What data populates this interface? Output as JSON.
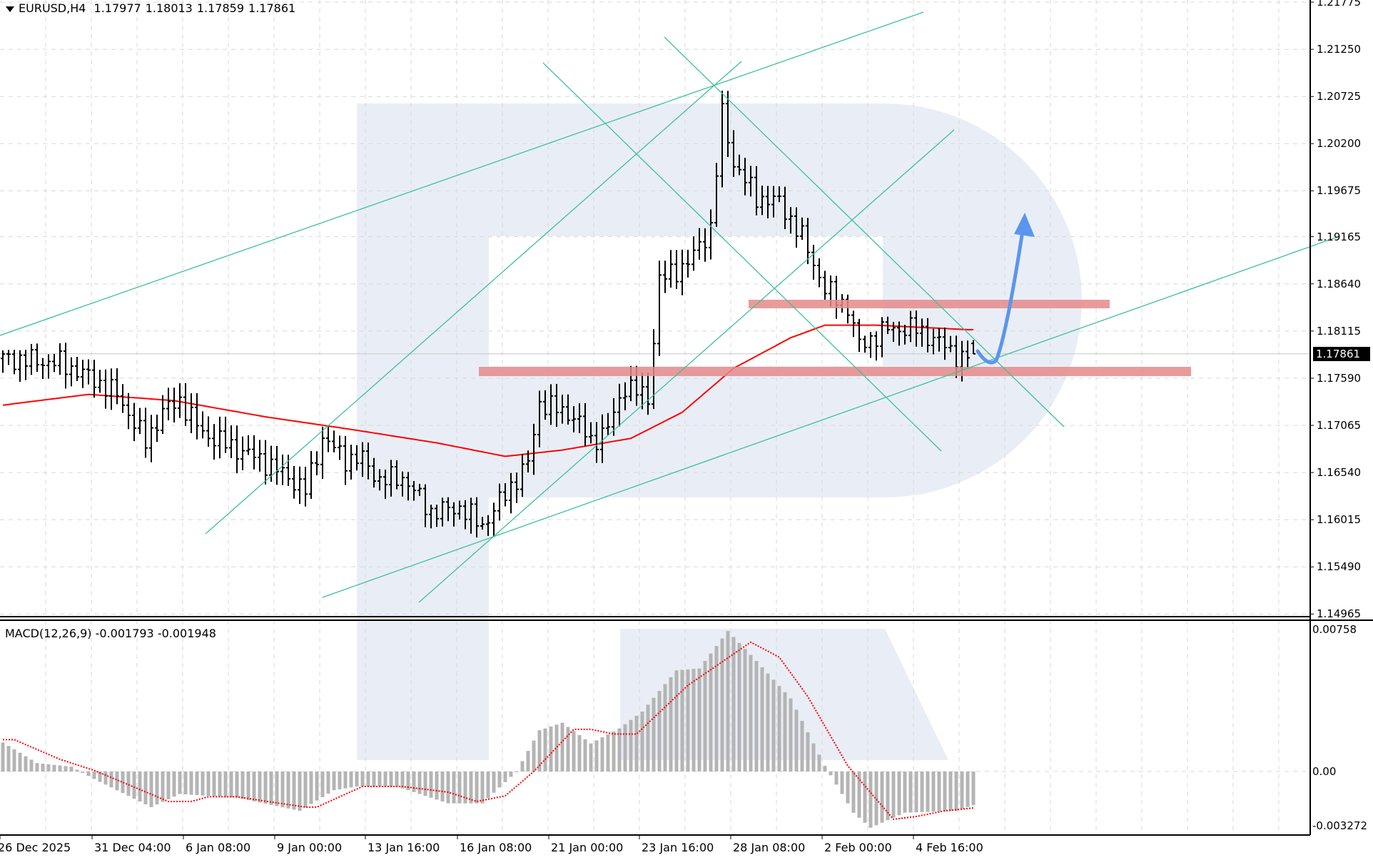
{
  "header": {
    "symbol": "EURUSD,H4",
    "open": "1.17977",
    "high": "1.18013",
    "low": "1.17859",
    "close": "1.17861"
  },
  "macd_label": {
    "name": "MACD(12,26,9)",
    "main": "-0.001793",
    "signal": "-0.001948"
  },
  "colors": {
    "bars": "#000000",
    "moving_average": "#ff0000",
    "trendlines": "#3dbf9f",
    "zones": "#e58a8a",
    "forecast_arrow": "#5b95ee",
    "histogram": "#b4b4b4",
    "signal": "#ff0000",
    "watermark": "#e8edf5"
  },
  "chart_data": [
    {
      "type": "bar",
      "subtype": "ohlc",
      "symbol": "EURUSD",
      "timeframe": "H4",
      "y_ticks": [
        "1.21775",
        "1.21250",
        "1.20725",
        "1.20200",
        "1.19675",
        "1.19165",
        "1.18640",
        "1.18115",
        "1.17590",
        "1.17065",
        "1.16540",
        "1.16015",
        "1.15490",
        "1.14965"
      ],
      "ylim": [
        1.14965,
        1.21775
      ],
      "current_price": "1.17861",
      "x_ticks": [
        "26 Dec 2025",
        "31 Dec 04:00",
        "6 Jan 08:00",
        "9 Jan 00:00",
        "13 Jan 16:00",
        "16 Jan 08:00",
        "21 Jan 00:00",
        "23 Jan 16:00",
        "28 Jan 08:00",
        "2 Feb 00:00",
        "4 Feb 16:00"
      ],
      "bar_count": 171,
      "close_keypoints": [
        [
          0,
          1.1781
        ],
        [
          10,
          1.1776
        ],
        [
          15,
          1.1761
        ],
        [
          20,
          1.1741
        ],
        [
          25,
          1.1688
        ],
        [
          28,
          1.1722
        ],
        [
          31,
          1.1734
        ],
        [
          35,
          1.1698
        ],
        [
          40,
          1.1683
        ],
        [
          45,
          1.1669
        ],
        [
          50,
          1.1649
        ],
        [
          53,
          1.1634
        ],
        [
          56,
          1.1693
        ],
        [
          60,
          1.1669
        ],
        [
          63,
          1.1669
        ],
        [
          66,
          1.1645
        ],
        [
          70,
          1.1649
        ],
        [
          75,
          1.161
        ],
        [
          80,
          1.1615
        ],
        [
          84,
          1.1595
        ],
        [
          88,
          1.163
        ],
        [
          92,
          1.1664
        ],
        [
          94,
          1.1732
        ],
        [
          100,
          1.1717
        ],
        [
          103,
          1.1688
        ],
        [
          106,
          1.1703
        ],
        [
          109,
          1.1751
        ],
        [
          113,
          1.1737
        ],
        [
          115,
          1.1868
        ],
        [
          120,
          1.1887
        ],
        [
          124,
          1.1926
        ],
        [
          126,
          1.2053
        ],
        [
          128,
          1.1999
        ],
        [
          132,
          1.196
        ],
        [
          136,
          1.1955
        ],
        [
          140,
          1.1916
        ],
        [
          144,
          1.1858
        ],
        [
          148,
          1.1838
        ],
        [
          150,
          1.1795
        ],
        [
          155,
          1.1814
        ],
        [
          160,
          1.1814
        ],
        [
          165,
          1.1795
        ],
        [
          168,
          1.178
        ],
        [
          170,
          1.17861
        ]
      ],
      "last_bar": {
        "open": 1.17977,
        "high": 1.18013,
        "low": 1.17859,
        "close": 1.17861
      },
      "moving_average_keypoints": [
        [
          0,
          1.1729
        ],
        [
          15,
          1.1741
        ],
        [
          30,
          1.1734
        ],
        [
          46,
          1.1716
        ],
        [
          61,
          1.1702
        ],
        [
          76,
          1.1687
        ],
        [
          88,
          1.1672
        ],
        [
          98,
          1.1679
        ],
        [
          110,
          1.1692
        ],
        [
          119,
          1.1721
        ],
        [
          128,
          1.177
        ],
        [
          138,
          1.1804
        ],
        [
          144,
          1.1818
        ],
        [
          153,
          1.1818
        ],
        [
          169,
          1.1813
        ]
      ],
      "trendlines": 6,
      "support_resistance_zones": [
        [
          1.185,
          1.186
        ],
        [
          1.1764,
          1.1775
        ]
      ],
      "forecast": "up"
    },
    {
      "type": "bar",
      "title": "MACD(12,26,9)",
      "y_ticks": [
        "0.00758",
        "0.00",
        "-0.003272"
      ],
      "ylim": [
        -0.003272,
        0.00758
      ],
      "histogram_keypoints": [
        [
          0,
          0.00155
        ],
        [
          6,
          0.00045
        ],
        [
          12,
          0.00026
        ],
        [
          16,
          -0.0004
        ],
        [
          26,
          -0.0019
        ],
        [
          31,
          -0.0012
        ],
        [
          41,
          -0.0014
        ],
        [
          52,
          -0.0021
        ],
        [
          58,
          -0.001
        ],
        [
          62,
          -0.0008
        ],
        [
          69,
          -0.0008
        ],
        [
          78,
          -0.0017
        ],
        [
          84,
          -0.0017
        ],
        [
          90,
          0
        ],
        [
          94,
          0.0022
        ],
        [
          98,
          0.0026
        ],
        [
          103,
          0.0015
        ],
        [
          108,
          0.0023
        ],
        [
          112,
          0.0032
        ],
        [
          118,
          0.0054
        ],
        [
          122,
          0.0055
        ],
        [
          127,
          0.0075
        ],
        [
          132,
          0.0059
        ],
        [
          138,
          0.0039
        ],
        [
          142,
          0.0015
        ],
        [
          144,
          0.0003
        ],
        [
          149,
          -0.0022
        ],
        [
          152,
          -0.003
        ],
        [
          158,
          -0.0022
        ],
        [
          167,
          -0.0021
        ],
        [
          170,
          -0.001793
        ]
      ],
      "signal_keypoints": [
        [
          0,
          0.0017
        ],
        [
          2,
          0.0017
        ],
        [
          10,
          0.00065
        ],
        [
          16,
          6e-05
        ],
        [
          29,
          -0.0016
        ],
        [
          33,
          -0.0016
        ],
        [
          36,
          -0.00135
        ],
        [
          41,
          -0.00135
        ],
        [
          53,
          -0.0019
        ],
        [
          55,
          -0.0019
        ],
        [
          63,
          -0.0008
        ],
        [
          70,
          -0.0008
        ],
        [
          78,
          -0.0011
        ],
        [
          83,
          -0.0016
        ],
        [
          88,
          -0.0013
        ],
        [
          93,
          0
        ],
        [
          100,
          0.00225
        ],
        [
          103,
          0.00225
        ],
        [
          107,
          0.002
        ],
        [
          111,
          0.002
        ],
        [
          120,
          0.0046
        ],
        [
          131,
          0.0069
        ],
        [
          136,
          0.0061
        ],
        [
          141,
          0.004
        ],
        [
          148,
          0.0003
        ],
        [
          156,
          -0.00255
        ],
        [
          160,
          -0.0024
        ],
        [
          165,
          -0.0021
        ],
        [
          170,
          -0.001948
        ]
      ]
    }
  ]
}
